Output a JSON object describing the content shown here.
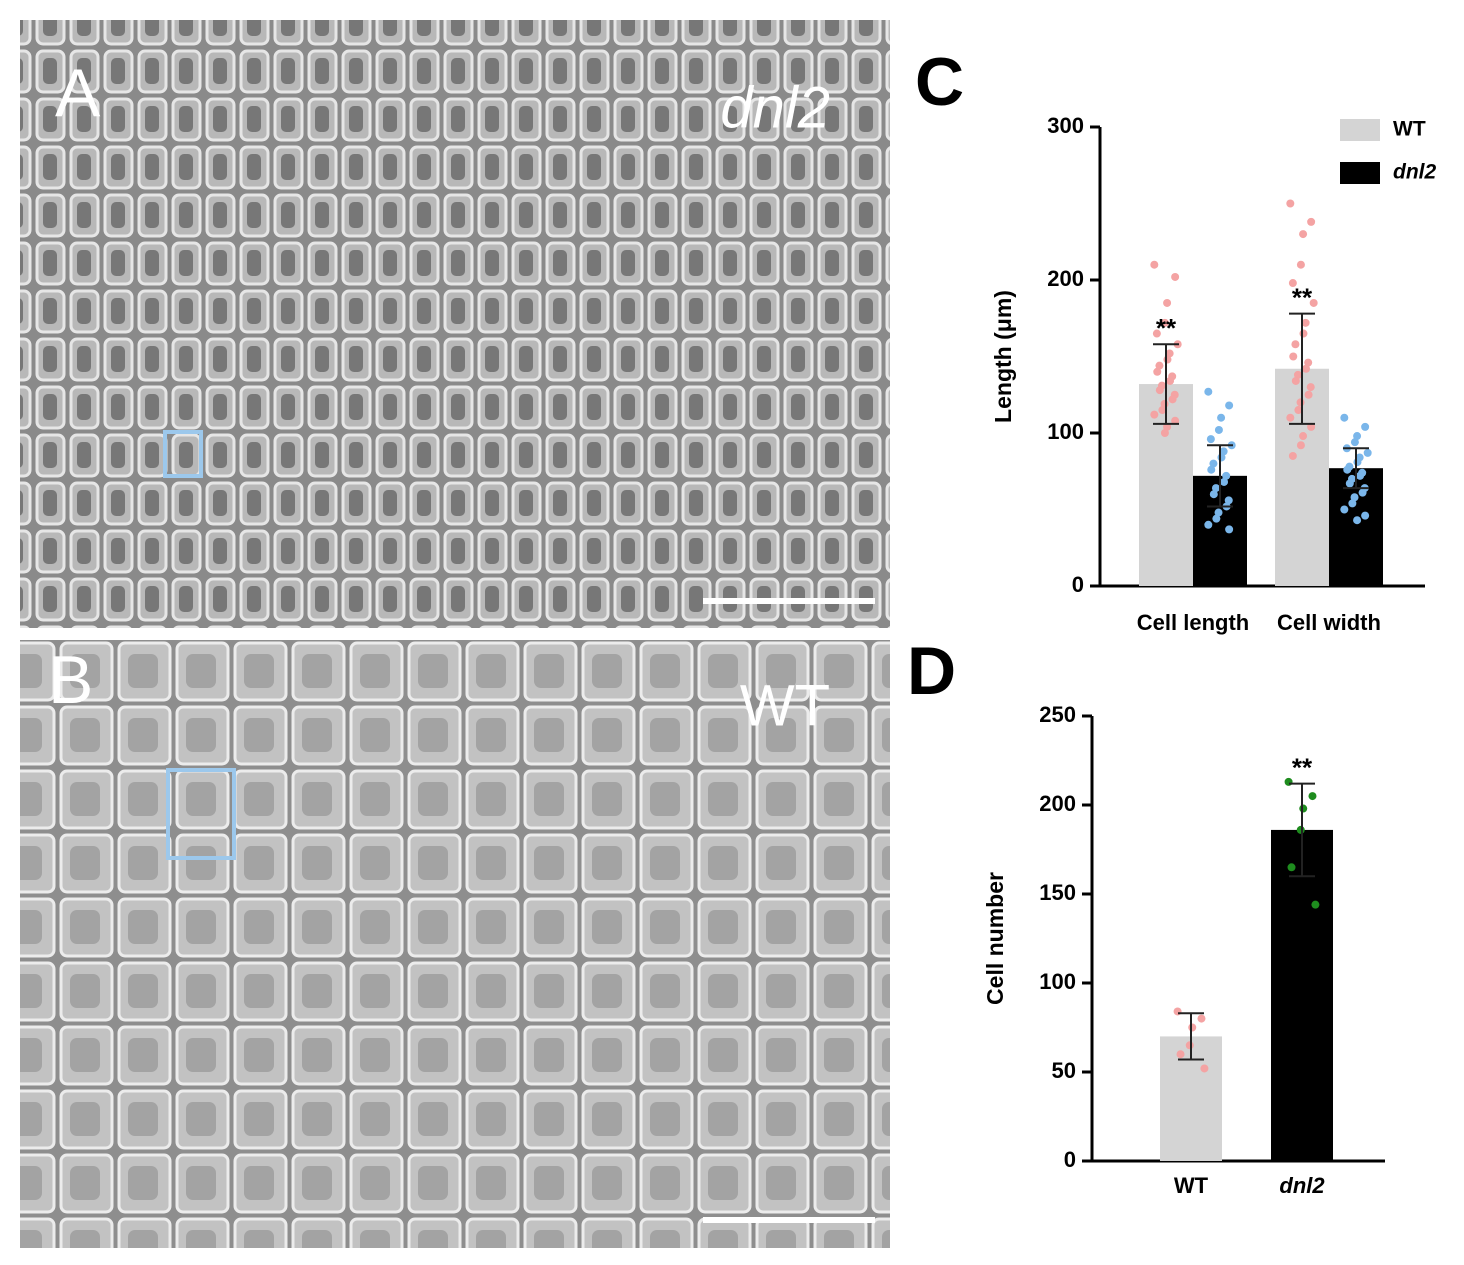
{
  "images": [
    {
      "panel": "A",
      "label": "dnl2"
    },
    {
      "panel": "B",
      "label": "WT"
    }
  ],
  "chart_data": [
    {
      "type": "grouped-bar-dots",
      "panel": "C",
      "y_label": "Length (μm)",
      "categories": [
        "Cell length",
        "Cell width"
      ],
      "ylim": [
        0,
        300
      ],
      "yticks": [
        0,
        100,
        200,
        300
      ],
      "series": [
        {
          "name": "WT",
          "color": "#d4d4d4",
          "point_color": "#f4a3a3",
          "values": [
            132,
            142
          ],
          "errors": [
            26,
            36
          ],
          "annotations": [
            "**",
            "**"
          ],
          "points": [
            [
              210,
              202,
              185,
              172,
              165,
              158,
              152,
              148,
              144,
              140,
              137,
              134,
              131,
              128,
              125,
              122,
              119,
              115,
              112,
              108,
              104,
              100
            ],
            [
              250,
              238,
              230,
              210,
              198,
              185,
              172,
              165,
              158,
              150,
              146,
              142,
              138,
              134,
              130,
              125,
              120,
              115,
              110,
              104,
              98,
              92,
              85
            ]
          ]
        },
        {
          "name": "dnl2",
          "color": "#000000",
          "point_color": "#7ab6ea",
          "values": [
            72,
            77
          ],
          "errors": [
            20,
            13
          ],
          "annotations": [
            null,
            null
          ],
          "points": [
            [
              127,
              118,
              110,
              102,
              96,
              92,
              88,
              84,
              80,
              76,
              72,
              68,
              64,
              60,
              56,
              52,
              48,
              44,
              40,
              37
            ],
            [
              110,
              104,
              98,
              94,
              90,
              87,
              84,
              81,
              78,
              76,
              74,
              72,
              70,
              67,
              64,
              61,
              58,
              54,
              50,
              46,
              43
            ]
          ]
        }
      ]
    },
    {
      "type": "bar-dots",
      "panel": "D",
      "y_label": "Cell number",
      "categories": [
        "WT",
        "dnl2"
      ],
      "values": [
        70,
        186
      ],
      "errors": [
        13,
        26
      ],
      "colors": [
        "#d4d4d4",
        "#000000"
      ],
      "point_colors": [
        "#f4a3a3",
        "#1e8c1e"
      ],
      "annotations": [
        null,
        "**"
      ],
      "points": [
        [
          84,
          80,
          75,
          65,
          60,
          52
        ],
        [
          213,
          205,
          198,
          186,
          165,
          144
        ]
      ],
      "ylim": [
        0,
        250
      ],
      "yticks": [
        0,
        50,
        100,
        150,
        200,
        250
      ]
    }
  ]
}
